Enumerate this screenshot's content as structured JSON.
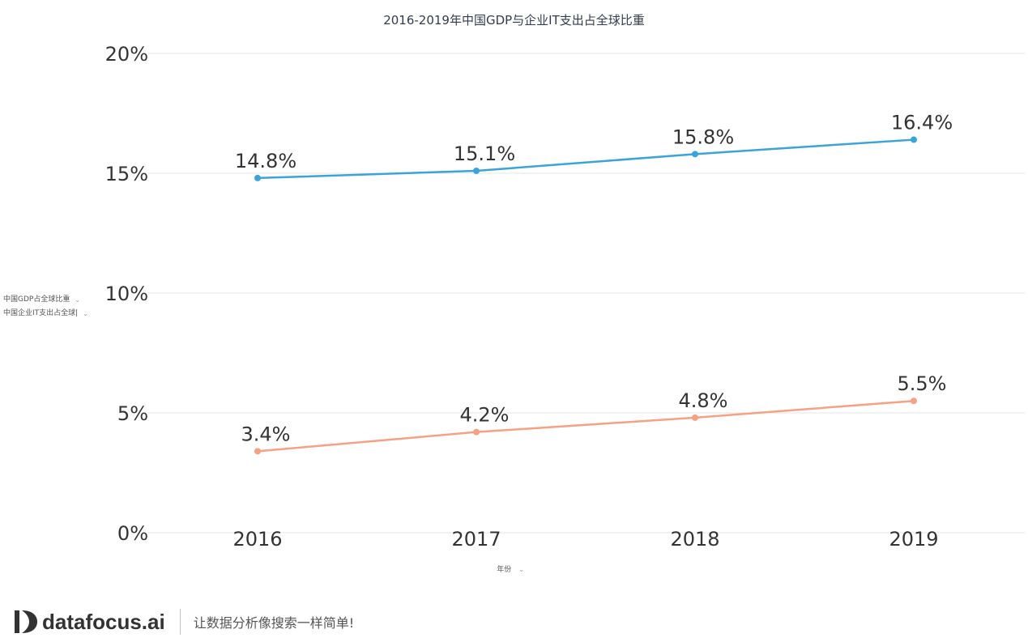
{
  "colors": {
    "series1": "#3ba3db",
    "series2": "#f7a083",
    "grid": "#e6e6e6",
    "text": "#333333"
  },
  "legend": {
    "items": [
      {
        "label": "中国GDP占全球比重",
        "icon": "chevron-down-icon"
      },
      {
        "label": "中国企业IT支出占全球|",
        "icon": "chevron-down-icon"
      }
    ]
  },
  "x_axis": {
    "title": "年份",
    "icon": "chevron-down-icon"
  },
  "chart_data": {
    "type": "line",
    "title": "2016-2019年中国GDP与企业IT支出占全球比重",
    "categories": [
      "2016",
      "2017",
      "2018",
      "2019"
    ],
    "series": [
      {
        "name": "中国GDP占全球比重",
        "values": [
          14.8,
          15.1,
          15.8,
          16.4
        ],
        "labels": [
          "14.8%",
          "15.1%",
          "15.8%",
          "16.4%"
        ]
      },
      {
        "name": "中国企业IT支出占全球比重",
        "values": [
          3.4,
          4.2,
          4.8,
          5.5
        ],
        "labels": [
          "3.4%",
          "4.2%",
          "4.8%",
          "5.5%"
        ]
      }
    ],
    "ylim": [
      0,
      20
    ],
    "yticks": [
      0,
      5,
      10,
      15,
      20
    ],
    "ytick_labels": [
      "0%",
      "5%",
      "10%",
      "15%",
      "20%"
    ],
    "xlabel": "年份",
    "grid": true,
    "legend_position": "left"
  },
  "footer": {
    "brand": "datafocus.ai",
    "slogan": "让数据分析像搜索一样简单!"
  }
}
